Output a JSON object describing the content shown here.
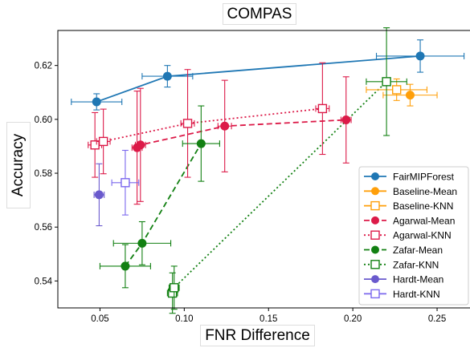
{
  "chart_data": {
    "type": "scatter",
    "title": "COMPAS",
    "xlabel": "FNR Difference",
    "ylabel": "Accuracy",
    "xlim": [
      0.025,
      0.27
    ],
    "ylim": [
      0.53,
      0.633
    ],
    "x_ticks": [
      "0.05",
      "0.10",
      "0.15",
      "0.20",
      "0.25"
    ],
    "x_tick_values": [
      0.05,
      0.1,
      0.15,
      0.2,
      0.25
    ],
    "y_ticks": [
      "0.54",
      "0.56",
      "0.58",
      "0.60",
      "0.62"
    ],
    "y_tick_values": [
      0.54,
      0.56,
      0.58,
      0.6,
      0.62
    ],
    "grid": false,
    "legend_position": "lower-right",
    "series": [
      {
        "name": "FairMIPForest",
        "color": "#1f77b4",
        "marker": "filled",
        "line": "solid",
        "points": [
          {
            "x": 0.048,
            "y": 0.6065,
            "xerr": 0.015,
            "yerr": 0.003
          },
          {
            "x": 0.09,
            "y": 0.616,
            "xerr": 0.015,
            "yerr": 0.004
          },
          {
            "x": 0.24,
            "y": 0.6235,
            "xerr": 0.026,
            "yerr": 0.006
          }
        ]
      },
      {
        "name": "Baseline-Mean",
        "color": "#ff9f0a",
        "marker": "filled",
        "line": "none",
        "points": [
          {
            "x": 0.234,
            "y": 0.609,
            "xerr": 0.016,
            "yerr": 0.004
          }
        ]
      },
      {
        "name": "Baseline-KNN",
        "color": "#ff9f0a",
        "marker": "open",
        "line": "none",
        "points": [
          {
            "x": 0.226,
            "y": 0.611,
            "xerr": 0.018,
            "yerr": 0.004
          }
        ]
      },
      {
        "name": "Agarwal-Mean",
        "color": "#dc1a48",
        "marker": "filled",
        "line": "dashed",
        "points": [
          {
            "x": 0.072,
            "y": 0.5895,
            "xerr": 0.003,
            "yerr": 0.021
          },
          {
            "x": 0.074,
            "y": 0.5905,
            "xerr": 0.003,
            "yerr": 0.021
          },
          {
            "x": 0.124,
            "y": 0.5975,
            "xerr": 0.004,
            "yerr": 0.017
          },
          {
            "x": 0.196,
            "y": 0.5998,
            "xerr": 0.003,
            "yerr": 0.016
          }
        ]
      },
      {
        "name": "Agarwal-KNN",
        "color": "#dc1a48",
        "marker": "open",
        "line": "dotted",
        "points": [
          {
            "x": 0.047,
            "y": 0.5905,
            "xerr": 0.004,
            "yerr": 0.012
          },
          {
            "x": 0.052,
            "y": 0.5918,
            "xerr": 0.004,
            "yerr": 0.012
          },
          {
            "x": 0.102,
            "y": 0.5985,
            "xerr": 0.004,
            "yerr": 0.02
          },
          {
            "x": 0.182,
            "y": 0.604,
            "xerr": 0.004,
            "yerr": 0.017
          }
        ]
      },
      {
        "name": "Zafar-Mean",
        "color": "#128012",
        "marker": "filled",
        "line": "dashed",
        "points": [
          {
            "x": 0.065,
            "y": 0.5455,
            "xerr": 0.015,
            "yerr": 0.008
          },
          {
            "x": 0.075,
            "y": 0.554,
            "xerr": 0.017,
            "yerr": 0.008
          },
          {
            "x": 0.11,
            "y": 0.591,
            "xerr": 0.011,
            "yerr": 0.014
          }
        ]
      },
      {
        "name": "Zafar-KNN",
        "color": "#128012",
        "marker": "open",
        "line": "dotted",
        "points": [
          {
            "x": 0.093,
            "y": 0.5355,
            "xerr": 0.003,
            "yerr": 0.0075
          },
          {
            "x": 0.094,
            "y": 0.5375,
            "xerr": 0.003,
            "yerr": 0.008
          },
          {
            "x": 0.22,
            "y": 0.614,
            "xerr": 0.012,
            "yerr": 0.02
          }
        ]
      },
      {
        "name": "Hardt-Mean",
        "color": "#6a5acd",
        "marker": "filled",
        "line": "none",
        "points": [
          {
            "x": 0.0495,
            "y": 0.572,
            "xerr": 0.003,
            "yerr": 0.0115
          }
        ]
      },
      {
        "name": "Hardt-KNN",
        "color": "#7b68ee",
        "marker": "open",
        "line": "none",
        "points": [
          {
            "x": 0.065,
            "y": 0.5765,
            "xerr": 0.008,
            "yerr": 0.012
          }
        ]
      }
    ]
  }
}
